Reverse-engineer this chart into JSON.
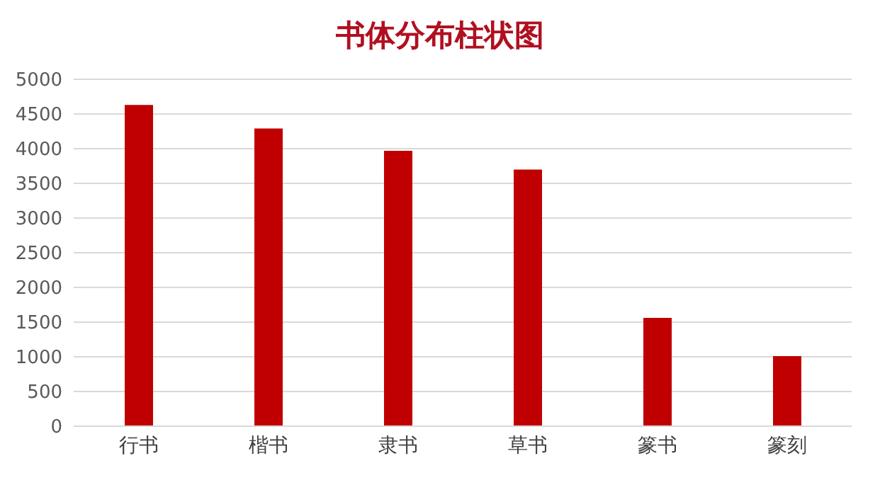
{
  "chart_data": {
    "type": "bar",
    "title": "书体分布柱状图",
    "categories": [
      "行书",
      "楷书",
      "隶书",
      "草书",
      "篆书",
      "篆刻"
    ],
    "values": [
      4630,
      4290,
      3970,
      3700,
      1560,
      1010
    ],
    "color": "#c00000",
    "ylim": [
      0,
      5000
    ],
    "yticks": [
      0,
      500,
      1000,
      1500,
      2000,
      2500,
      3000,
      3500,
      4000,
      4500,
      5000
    ],
    "grid": "y",
    "legend": false
  }
}
